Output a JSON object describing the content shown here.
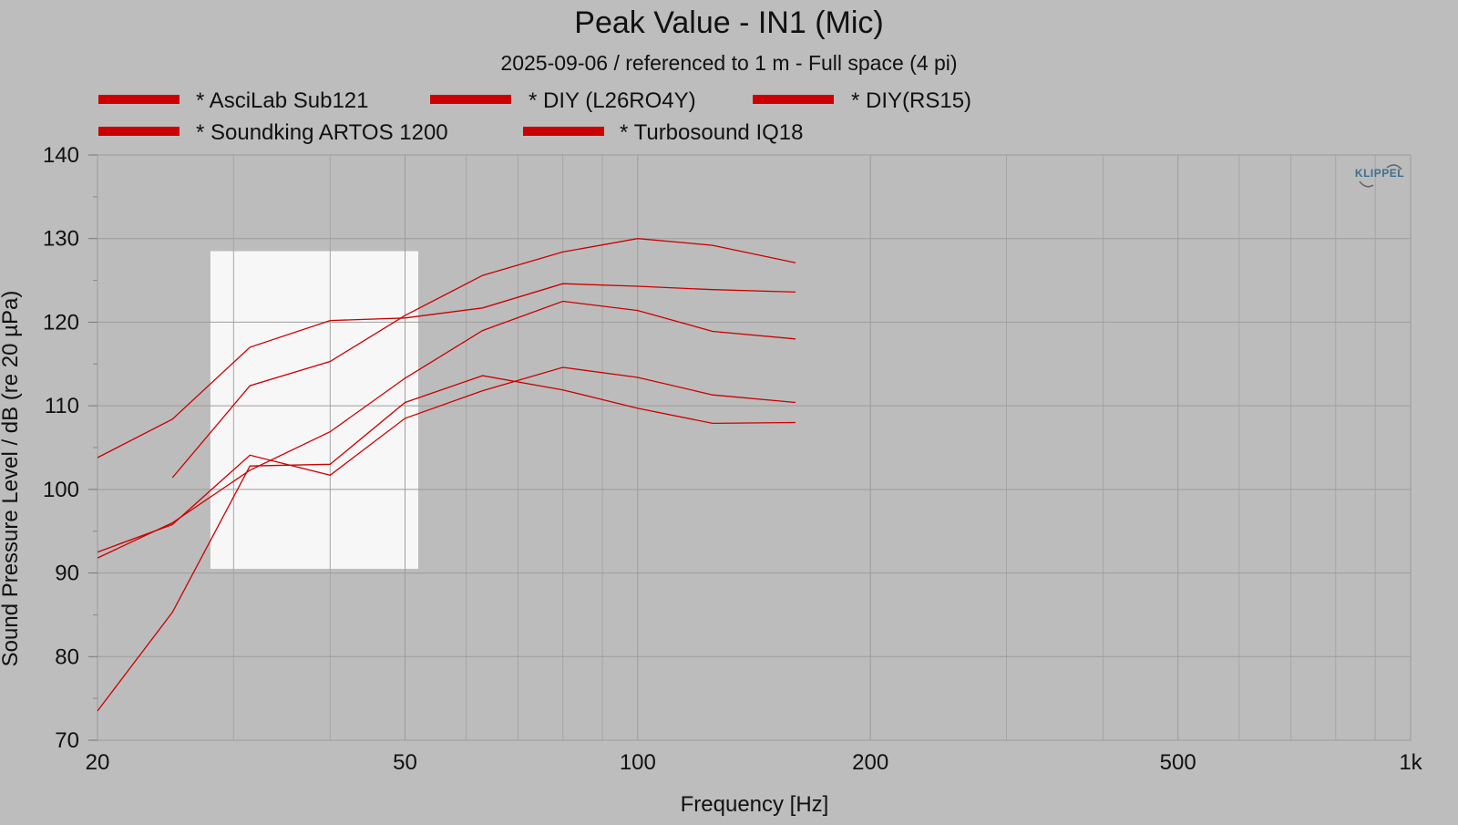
{
  "chart_data": {
    "type": "line",
    "title": "Peak Value - IN1 (Mic)",
    "subtitle": "2025-09-06 / referenced to 1 m - Full space (4 pi)",
    "xlabel": "Frequency [Hz]",
    "ylabel": "Sound Pressure Level / dB (re 20 µPa)",
    "xscale": "log",
    "xlim": [
      20,
      1000
    ],
    "ylim": [
      70,
      140
    ],
    "grid": true,
    "legend_position": "top",
    "x_ticks": [
      {
        "value": 20,
        "label": "20"
      },
      {
        "value": 50,
        "label": "50"
      },
      {
        "value": 100,
        "label": "100"
      },
      {
        "value": 200,
        "label": "200"
      },
      {
        "value": 500,
        "label": "500"
      },
      {
        "value": 1000,
        "label": "1k"
      }
    ],
    "y_ticks": [
      {
        "value": 70,
        "label": "70"
      },
      {
        "value": 80,
        "label": "80"
      },
      {
        "value": 90,
        "label": "90"
      },
      {
        "value": 100,
        "label": "100"
      },
      {
        "value": 110,
        "label": "110"
      },
      {
        "value": 120,
        "label": "120"
      },
      {
        "value": 130,
        "label": "130"
      },
      {
        "value": 140,
        "label": "140"
      }
    ],
    "x_minor_grid": [
      30,
      40,
      60,
      70,
      80,
      90,
      300,
      400,
      600,
      700,
      800,
      900
    ],
    "highlight_region": {
      "x": [
        28,
        52
      ],
      "y": [
        90.5,
        128.5
      ]
    },
    "series_color": "#cc0000",
    "series": [
      {
        "name": "* AsciLab Sub121",
        "x": [
          20,
          25,
          31.5,
          40,
          50,
          63,
          80,
          100,
          125,
          160
        ],
        "y": [
          103.8,
          108.4,
          117,
          120.2,
          120.5,
          121.7,
          124.6,
          124.3,
          123.9,
          123.6
        ]
      },
      {
        "name": "* DIY (L26RO4Y)",
        "x": [
          25,
          31.5,
          40,
          50,
          63,
          80,
          100,
          125,
          160
        ],
        "y": [
          101.4,
          112.4,
          115.3,
          120.8,
          125.6,
          128.4,
          130,
          129.2,
          127.1
        ]
      },
      {
        "name": "* DIY(RS15)",
        "x": [
          20,
          25,
          31.5,
          40,
          50,
          63,
          80,
          100,
          125,
          160
        ],
        "y": [
          91.8,
          96,
          102.3,
          106.9,
          113.3,
          119,
          122.5,
          121.4,
          118.9,
          118
        ]
      },
      {
        "name": "* Soundking ARTOS 1200",
        "x": [
          20,
          25,
          31.5,
          40,
          50,
          63,
          80,
          100,
          125,
          160
        ],
        "y": [
          73.5,
          85.3,
          102.8,
          103,
          110.4,
          113.6,
          111.9,
          109.7,
          107.9,
          108
        ]
      },
      {
        "name": "* Turbosound IQ18",
        "x": [
          20,
          25,
          31.5,
          40,
          50,
          63,
          80,
          100,
          125,
          160
        ],
        "y": [
          92.5,
          95.8,
          104.1,
          101.7,
          108.5,
          111.8,
          114.6,
          113.4,
          111.3,
          110.4
        ]
      }
    ]
  },
  "logo": {
    "text": "KLIPPEL"
  }
}
